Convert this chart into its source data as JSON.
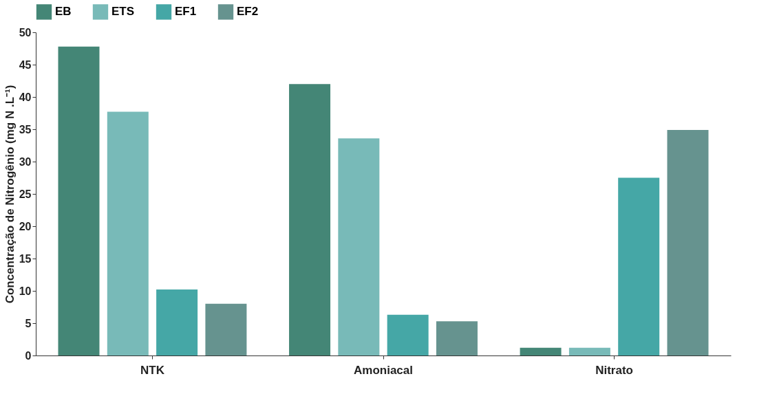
{
  "chart_data": {
    "type": "bar",
    "ylabel": "Concentração de Nitrogênio (mg N .L⁻¹)",
    "categories": [
      "NTK",
      "Amoniacal",
      "Nitrato"
    ],
    "series": [
      {
        "name": "EB",
        "color": "#448676",
        "values": [
          47.8,
          42.0,
          1.2
        ]
      },
      {
        "name": "ETS",
        "color": "#78bab8",
        "values": [
          37.7,
          33.6,
          1.2
        ]
      },
      {
        "name": "EF1",
        "color": "#45a7a6",
        "values": [
          10.2,
          6.3,
          27.5
        ]
      },
      {
        "name": "EF2",
        "color": "#66938f",
        "values": [
          8.0,
          5.3,
          34.9
        ]
      }
    ],
    "ylim": [
      0,
      50
    ],
    "yticks": [
      0,
      5,
      10,
      15,
      20,
      25,
      30,
      35,
      40,
      45,
      50
    ],
    "grid": false,
    "legend": "top"
  }
}
